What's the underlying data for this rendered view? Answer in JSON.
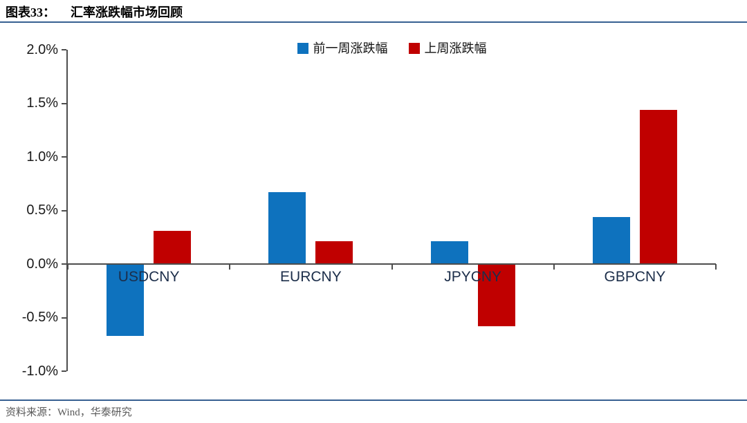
{
  "figure": {
    "label": "图表33：",
    "title": "汇率涨跌幅市场回顾",
    "source": "资料来源：Wind，华泰研究"
  },
  "colors": {
    "rule": "#365f91",
    "axis": "#4d4d4d",
    "source_text": "#595959",
    "series_blue": "#0e72be",
    "series_red": "#c00000"
  },
  "chart_data": {
    "type": "bar",
    "title": "汇率涨跌幅市场回顾",
    "categories": [
      "USDCNY",
      "EURCNY",
      "JPYCNY",
      "GBPCNY"
    ],
    "series": [
      {
        "name": "前一周涨跌幅",
        "color": "#0e72be",
        "values": [
          -0.67,
          0.67,
          0.21,
          0.44
        ]
      },
      {
        "name": "上周涨跌幅",
        "color": "#c00000",
        "values": [
          0.31,
          0.21,
          -0.58,
          1.44
        ]
      }
    ],
    "unit": "%",
    "xlabel": "",
    "ylabel": "",
    "ylim": [
      -1.0,
      2.0
    ],
    "y_ticks": [
      2.0,
      1.5,
      1.0,
      0.5,
      0.0,
      -0.5,
      -1.0
    ],
    "y_tick_labels": [
      "2.0%",
      "1.5%",
      "1.0%",
      "0.5%",
      "0.0%",
      "-0.5%",
      "-1.0%"
    ],
    "grid": false,
    "legend_position": "top-center"
  }
}
